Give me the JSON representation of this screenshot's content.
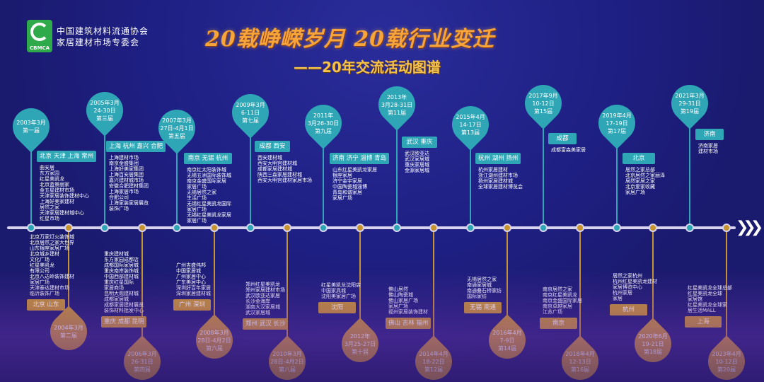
{
  "header": {
    "logo_text": "CBMCA",
    "org_line1": "中国建筑材料流通协会",
    "org_line2": "家居建材市场专委会",
    "title": "20载峥嵘岁月 20载行业变迁",
    "subtitle": "——20年交流活动图谱"
  },
  "colors": {
    "top_pin": "#2ea6b6",
    "bottom_pin": "#c8942f",
    "background": "#1e1f82"
  },
  "events": [
    {
      "date": [
        "2003年3月",
        "第一届"
      ],
      "cities": "北京 天津 上海 常州",
      "venues": [
        "曲安居",
        "东方家园",
        "红星美凯龙",
        "北京蓝景丽家",
        "金五星建材市场",
        "天津家居装饰建材中心",
        "上海好美家建材",
        "居然之家",
        "天津家居建材城中心",
        "红星市场"
      ]
    },
    {
      "date": [
        "2004年3月",
        "第二届"
      ],
      "cities": "北京 山东",
      "venues": [
        "北京万家灯火装饰城",
        "北京居然之家大世界",
        "山东银座家居广场",
        "北京城乡建材",
        "文化广场",
        "红星美凯龙",
        "有限公司",
        "北京八达岭装饰建材",
        "家居广场",
        "天津泰达建材市场",
        "临沂装饰广场"
      ]
    },
    {
      "date": [
        "2005年3月",
        "24-30日",
        "第三届"
      ],
      "cities": "上海 杭州 嘉兴 合肥",
      "venues": [
        "上海建材市场",
        "南京金盛集团",
        "上海好美家集团",
        "上海百安居集团",
        "嘉兴建材城市场",
        "安徽合肥建材集团",
        "上海家居市场",
        "合肥公司",
        "上海家装家居展览",
        "装饰广场"
      ]
    },
    {
      "date": [
        "2006年3月",
        "26-31日",
        "第四届"
      ],
      "cities": "重庆 成都 昆明",
      "venues": [
        "重庆建材城",
        "东方家园成都店",
        "成都国际家居城",
        "重庆南岸装饰城",
        "中国西部建材城",
        "重庆红星国际",
        "家居商场",
        "昆明大观建材城",
        "成都家居城",
        "成都家居建材展览",
        "装饰材料批发中心"
      ]
    },
    {
      "date": [
        "2007年3月",
        "27日-4月1日",
        "第五届"
      ],
      "cities": "南京 无锡 杭州",
      "venues": [
        "南京红太阳装饰城",
        "无锡五洲国际装饰城",
        "南京金盛国际家居",
        "家居广场",
        "无锡居然之家",
        "生活广场",
        "无锡红星美凯龙国际",
        "家居广场",
        "无锡红星美凯龙家居",
        "家居广场"
      ]
    },
    {
      "date": [
        "2008年3月",
        "28日-4月2日",
        "第六届"
      ],
      "cities": "广州 深圳",
      "venues": [
        "广州吉盛伟邦",
        "中国家居城",
        "广州家居中心",
        "广东美居中心",
        "深圳好百年家居",
        "深圳家居建材城"
      ]
    },
    {
      "date": [
        "2009年3月",
        "6-11日",
        "第七届"
      ],
      "cities": "成都 西安",
      "venues": [
        "西安建材城",
        "西安大明宫建材城",
        "成都家居建材城",
        "陕西三森家居建材城",
        "西安大明宫建材家居市场"
      ]
    },
    {
      "date": [
        "2010年3月",
        "28日-4月2日",
        "第八届"
      ],
      "cities": "郑州 武汉 长沙",
      "venues": [
        "郑州红星美凯龙",
        "郑州家居建材市场",
        "武汉欧亚达家居",
        "长沙金海岸",
        "湖南大汉家居城",
        "武汉家居城"
      ]
    },
    {
      "date": [
        "2011年",
        "3月26-30日",
        "第九届"
      ],
      "cities": "济南 济宁 淄博 青岛",
      "venues": [
        "山东红星美凯龙家居",
        "银座家居",
        "济宁金宇家居",
        "中国陶瓷城淄博",
        "青岛和谐家居",
        "家居广场"
      ]
    },
    {
      "date": [
        "2012年",
        "3月25-27日",
        "第十届"
      ],
      "cities": "沈阳",
      "venues": [
        "红星美凯龙沈阳店",
        "中国家具城",
        "沈阳美家居广场"
      ]
    },
    {
      "date": [
        "2013年",
        "3月28-31日",
        "第11届"
      ],
      "cities": "武汉 重庆",
      "venues": [
        "武汉欧亚达",
        "武汉家居城",
        "重庆家居城",
        "金源家居城"
      ]
    },
    {
      "date": [
        "2014年4月",
        "18-22日",
        "第12届"
      ],
      "cities": "佛山 吉林 福州",
      "venues": [
        "佛山居然",
        "佛山陶瓷城",
        "佛山家居广场",
        "家居广场",
        "福州家居装饰建材"
      ]
    },
    {
      "date": [
        "2015年4月",
        "14-17日",
        "第13届"
      ],
      "cities": "杭州 湖州 扬州",
      "venues": [
        "杭州家居建材",
        "浙江湖州建材市场",
        "扬州家居建材城",
        "全球家居建材博览会"
      ]
    },
    {
      "date": [
        "2016年4月",
        "7-9日",
        "第14届"
      ],
      "cities": "无锡 南通",
      "venues": [
        "无锡居然之家",
        "南通家居城",
        "南通叠石桥家纺",
        "国际家纺"
      ]
    },
    {
      "date": [
        "2017年9月",
        "10-12日",
        "第15届"
      ],
      "cities": "成都",
      "venues": [
        "成都富森美家居"
      ]
    },
    {
      "date": [
        "2018年4月",
        "12-13日",
        "第16届"
      ],
      "cities": "南京",
      "venues": [
        "南京居然之家",
        "南京红星美凯龙",
        "南京金盛国际家居",
        "南京卓越家居",
        "江苏广场"
      ]
    },
    {
      "date": [
        "2019年4月",
        "17-19日",
        "第17届"
      ],
      "cities": "北京",
      "venues": [
        "居然之家总部",
        "北京居然之家丽泽",
        "居然家居之家",
        "北京爱家收藏",
        "家居广场"
      ]
    },
    {
      "date": [
        "2020年6月",
        "19-21日",
        "第18届"
      ],
      "cities": "杭州",
      "venues": [
        "居然之家杭州",
        "杭州红星美凯龙建材",
        "家居博览中心",
        "杭州家居",
        "家居"
      ]
    },
    {
      "date": [
        "2021年3月",
        "29-31日",
        "第19届"
      ],
      "cities": "济南",
      "venues": [
        "济南家居",
        "建材市场"
      ]
    },
    {
      "date": [
        "2023年4月",
        "10-12日",
        "第20届"
      ],
      "cities": "上海",
      "venues": [
        "红星美凯龙全球总部",
        "红星美凯龙全球",
        "家居馆",
        "红星美凯龙全球家",
        "居生活MALL"
      ]
    }
  ]
}
